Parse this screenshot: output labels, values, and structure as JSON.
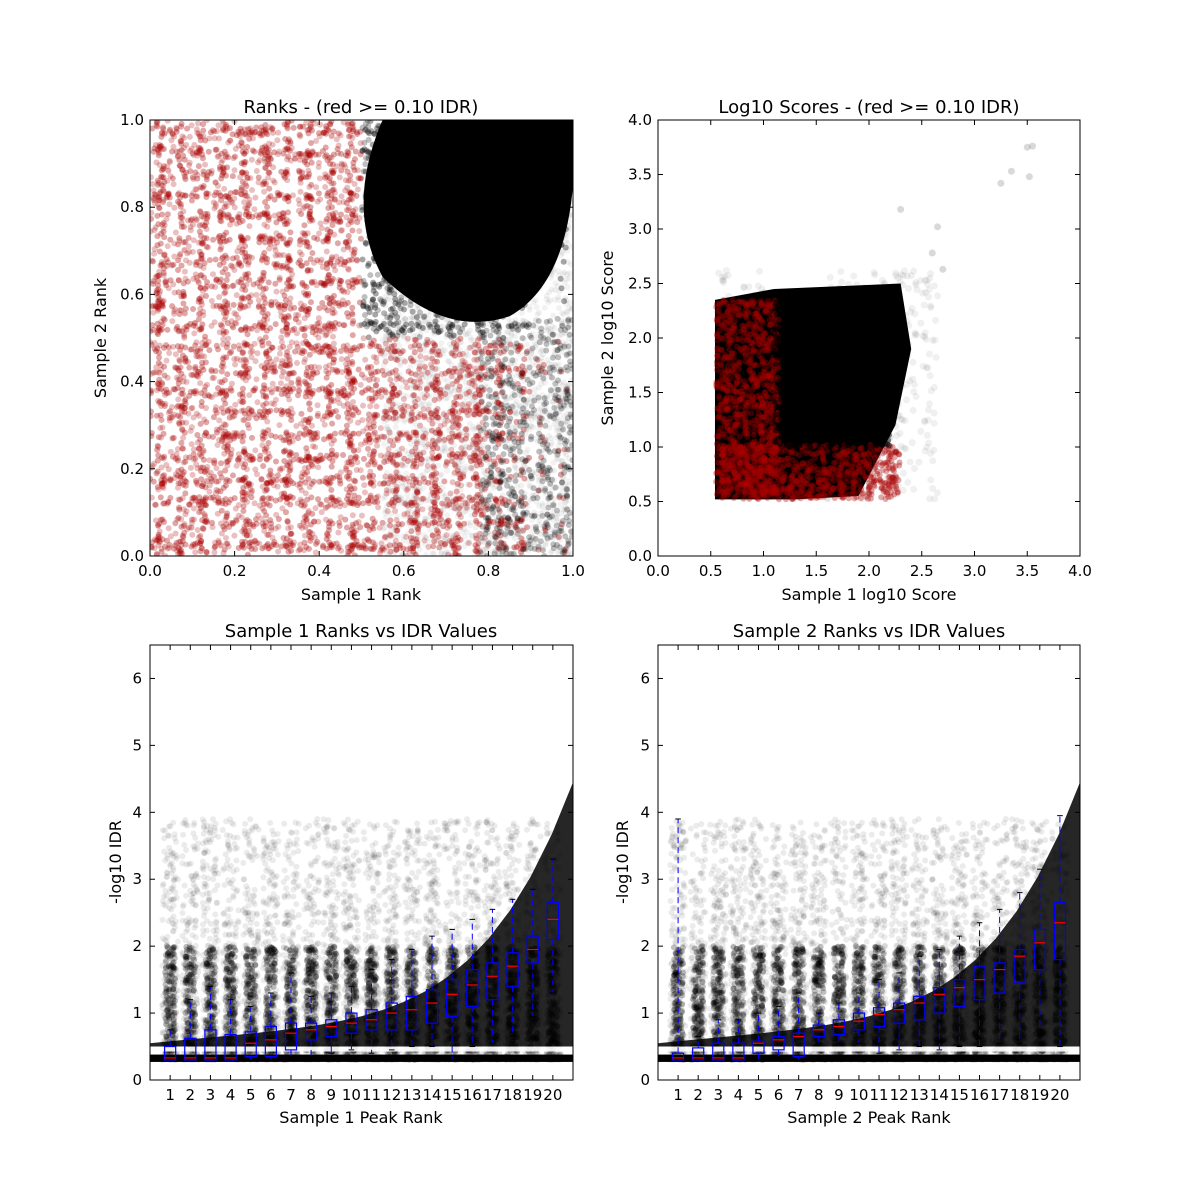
{
  "chart_data": [
    {
      "type": "scatter",
      "title": "Ranks - (red >= 0.10 IDR)",
      "xlabel": "Sample 1 Rank",
      "ylabel": "Sample 2 Rank",
      "xlim": [
        0.0,
        1.0
      ],
      "ylim": [
        0.0,
        1.0
      ],
      "xticks": [
        "0.0",
        "0.2",
        "0.4",
        "0.6",
        "0.8",
        "1.0"
      ],
      "yticks": [
        "0.0",
        "0.2",
        "0.4",
        "0.6",
        "0.8",
        "1.0"
      ],
      "colors": {
        "pass": "#000000",
        "fail": "#aa0000"
      },
      "regions": {
        "dense_upper_right": {
          "x": [
            0.5,
            1.0
          ],
          "y": [
            0.5,
            1.0
          ]
        },
        "red_lower_left": {
          "x": [
            0.0,
            0.8
          ],
          "y": [
            0.0,
            1.0
          ]
        }
      }
    },
    {
      "type": "scatter",
      "title": "Log10 Scores - (red >= 0.10 IDR)",
      "xlabel": "Sample 1 log10 Score",
      "ylabel": "Sample 2 log10 Score",
      "xlim": [
        0.0,
        4.0
      ],
      "ylim": [
        0.0,
        4.0
      ],
      "xticks": [
        "0.0",
        "0.5",
        "1.0",
        "1.5",
        "2.0",
        "2.5",
        "3.0",
        "3.5",
        "4.0"
      ],
      "yticks": [
        "0.0",
        "0.5",
        "1.0",
        "1.5",
        "2.0",
        "2.5",
        "3.0",
        "3.5",
        "4.0"
      ],
      "colors": {
        "pass": "#000000",
        "fail": "#aa0000"
      },
      "outliers": [
        {
          "x": 3.25,
          "y": 3.42
        },
        {
          "x": 3.35,
          "y": 3.53
        },
        {
          "x": 3.5,
          "y": 3.75
        },
        {
          "x": 3.55,
          "y": 3.76
        },
        {
          "x": 3.52,
          "y": 3.48
        },
        {
          "x": 2.65,
          "y": 3.02
        },
        {
          "x": 2.3,
          "y": 3.18
        },
        {
          "x": 2.6,
          "y": 2.78
        },
        {
          "x": 2.7,
          "y": 2.63
        }
      ]
    },
    {
      "type": "box",
      "title": "Sample 1 Ranks vs IDR Values",
      "xlabel": "Sample 1 Peak Rank",
      "ylabel": "-log10 IDR",
      "ylim": [
        0,
        6.5
      ],
      "yticks": [
        "0",
        "1",
        "2",
        "3",
        "4",
        "5",
        "6"
      ],
      "categories": [
        "1",
        "2",
        "3",
        "4",
        "5",
        "6",
        "7",
        "8",
        "9",
        "10",
        "11",
        "12",
        "13",
        "14",
        "15",
        "16",
        "17",
        "18",
        "19",
        "20"
      ],
      "boxes": [
        {
          "whislo": 0.3,
          "q1": 0.3,
          "med": 0.33,
          "q3": 0.5,
          "whishi": 0.75
        },
        {
          "whislo": 0.3,
          "q1": 0.3,
          "med": 0.33,
          "q3": 0.62,
          "whishi": 1.2
        },
        {
          "whislo": 0.3,
          "q1": 0.3,
          "med": 0.33,
          "q3": 0.75,
          "whishi": 1.4
        },
        {
          "whislo": 0.3,
          "q1": 0.3,
          "med": 0.33,
          "q3": 0.68,
          "whishi": 1.2
        },
        {
          "whislo": 0.3,
          "q1": 0.35,
          "med": 0.55,
          "q3": 0.72,
          "whishi": 1.1
        },
        {
          "whislo": 0.3,
          "q1": 0.35,
          "med": 0.6,
          "q3": 0.8,
          "whishi": 1.3
        },
        {
          "whislo": 0.3,
          "q1": 0.45,
          "med": 0.7,
          "q3": 0.85,
          "whishi": 1.6
        },
        {
          "whislo": 0.35,
          "q1": 0.6,
          "med": 0.75,
          "q3": 0.85,
          "whishi": 1.25
        },
        {
          "whislo": 0.4,
          "q1": 0.65,
          "med": 0.8,
          "q3": 0.9,
          "whishi": 1.3
        },
        {
          "whislo": 0.45,
          "q1": 0.7,
          "med": 0.85,
          "q3": 1.0,
          "whishi": 1.4
        },
        {
          "whislo": 0.4,
          "q1": 0.75,
          "med": 0.9,
          "q3": 1.05,
          "whishi": 1.65
        },
        {
          "whislo": 0.45,
          "q1": 0.75,
          "med": 1.0,
          "q3": 1.15,
          "whishi": 1.8
        },
        {
          "whislo": 0.5,
          "q1": 0.75,
          "med": 1.05,
          "q3": 1.25,
          "whishi": 1.95
        },
        {
          "whislo": 0.5,
          "q1": 0.85,
          "med": 1.15,
          "q3": 1.35,
          "whishi": 2.15
        },
        {
          "whislo": 0.3,
          "q1": 0.95,
          "med": 1.28,
          "q3": 1.5,
          "whishi": 2.25
        },
        {
          "whislo": 0.5,
          "q1": 1.1,
          "med": 1.42,
          "q3": 1.65,
          "whishi": 2.4
        },
        {
          "whislo": 0.55,
          "q1": 1.2,
          "med": 1.55,
          "q3": 1.75,
          "whishi": 2.55
        },
        {
          "whislo": 0.65,
          "q1": 1.4,
          "med": 1.7,
          "q3": 1.9,
          "whishi": 2.7
        },
        {
          "whislo": 0.95,
          "q1": 1.75,
          "med": 1.95,
          "q3": 2.15,
          "whishi": 2.85
        },
        {
          "whislo": 1.3,
          "q1": 2.1,
          "med": 2.4,
          "q3": 2.65,
          "whishi": 3.3
        }
      ],
      "colors": {
        "box": "#0000ff",
        "median": "#ff0000",
        "points": "#000000"
      }
    },
    {
      "type": "box",
      "title": "Sample 2 Ranks vs IDR Values",
      "xlabel": "Sample 2 Peak Rank",
      "ylabel": "-log10 IDR",
      "ylim": [
        0,
        6.5
      ],
      "yticks": [
        "0",
        "1",
        "2",
        "3",
        "4",
        "5",
        "6"
      ],
      "categories": [
        "1",
        "2",
        "3",
        "4",
        "5",
        "6",
        "7",
        "8",
        "9",
        "10",
        "11",
        "12",
        "13",
        "14",
        "15",
        "16",
        "17",
        "18",
        "19",
        "20"
      ],
      "boxes": [
        {
          "whislo": 0.3,
          "q1": 0.3,
          "med": 0.33,
          "q3": 0.4,
          "whishi": 3.9
        },
        {
          "whislo": 0.3,
          "q1": 0.3,
          "med": 0.33,
          "q3": 0.48,
          "whishi": 0.65
        },
        {
          "whislo": 0.3,
          "q1": 0.3,
          "med": 0.33,
          "q3": 0.55,
          "whishi": 0.9
        },
        {
          "whislo": 0.3,
          "q1": 0.3,
          "med": 0.33,
          "q3": 0.55,
          "whishi": 0.9
        },
        {
          "whislo": 0.3,
          "q1": 0.4,
          "med": 0.55,
          "q3": 0.58,
          "whishi": 1.0
        },
        {
          "whislo": 0.3,
          "q1": 0.45,
          "med": 0.6,
          "q3": 0.65,
          "whishi": 1.1
        },
        {
          "whislo": 0.3,
          "q1": 0.35,
          "med": 0.65,
          "q3": 0.7,
          "whishi": 1.3
        },
        {
          "whislo": 0.55,
          "q1": 0.65,
          "med": 0.75,
          "q3": 0.82,
          "whishi": 1.0
        },
        {
          "whislo": 0.55,
          "q1": 0.68,
          "med": 0.8,
          "q3": 0.9,
          "whishi": 1.15
        },
        {
          "whislo": 0.55,
          "q1": 0.75,
          "med": 0.88,
          "q3": 1.0,
          "whishi": 1.3
        },
        {
          "whislo": 0.4,
          "q1": 0.8,
          "med": 0.98,
          "q3": 1.08,
          "whishi": 1.5
        },
        {
          "whislo": 0.45,
          "q1": 0.85,
          "med": 1.05,
          "q3": 1.15,
          "whishi": 1.6
        },
        {
          "whislo": 0.5,
          "q1": 0.9,
          "med": 1.15,
          "q3": 1.25,
          "whishi": 1.85
        },
        {
          "whislo": 0.45,
          "q1": 1.0,
          "med": 1.28,
          "q3": 1.38,
          "whishi": 1.95
        },
        {
          "whislo": 0.5,
          "q1": 1.1,
          "med": 1.38,
          "q3": 1.5,
          "whishi": 2.15
        },
        {
          "whislo": 0.5,
          "q1": 1.2,
          "med": 1.5,
          "q3": 1.7,
          "whishi": 2.35
        },
        {
          "whislo": 0.55,
          "q1": 1.3,
          "med": 1.65,
          "q3": 1.75,
          "whishi": 2.55
        },
        {
          "whislo": 0.55,
          "q1": 1.45,
          "med": 1.85,
          "q3": 1.95,
          "whishi": 2.8
        },
        {
          "whislo": 0.75,
          "q1": 1.65,
          "med": 2.05,
          "q3": 2.25,
          "whishi": 3.15
        },
        {
          "whislo": 0.5,
          "q1": 1.8,
          "med": 2.35,
          "q3": 2.65,
          "whishi": 3.95
        }
      ],
      "colors": {
        "box": "#0000ff",
        "median": "#ff0000",
        "points": "#000000"
      }
    }
  ]
}
